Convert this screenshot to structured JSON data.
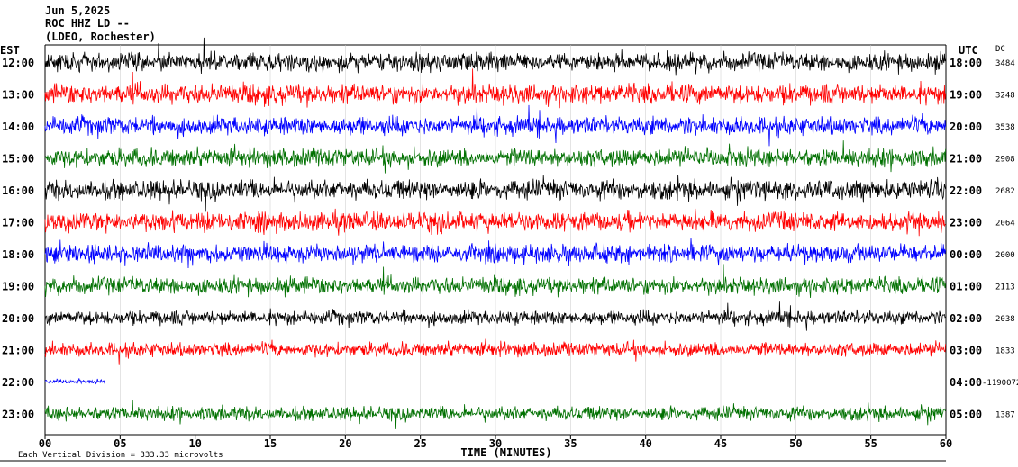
{
  "header": {
    "date": "Jun 5,2025",
    "station": "ROC HHZ LD --",
    "network": "(LDEO, Rochester)"
  },
  "chart_data": {
    "type": "helicorder",
    "title": "",
    "xlabel": "TIME (MINUTES)",
    "xlim": [
      0,
      60
    ],
    "x_ticks": [
      "00",
      "05",
      "10",
      "15",
      "20",
      "25",
      "30",
      "35",
      "40",
      "45",
      "50",
      "55",
      "60"
    ],
    "left_axis_label": "EST",
    "right_axis_label": "UTC",
    "dc_label": "DC",
    "rows": [
      {
        "est": "12:00",
        "utc": "18:00",
        "dc": "3484",
        "color": "#000000",
        "amp": 13
      },
      {
        "est": "13:00",
        "utc": "19:00",
        "dc": "3248",
        "color": "#ff0000",
        "amp": 14
      },
      {
        "est": "14:00",
        "utc": "20:00",
        "dc": "3538",
        "color": "#0000ff",
        "amp": 13
      },
      {
        "est": "15:00",
        "utc": "21:00",
        "dc": "2908",
        "color": "#007000",
        "amp": 13
      },
      {
        "est": "16:00",
        "utc": "22:00",
        "dc": "2682",
        "color": "#000000",
        "amp": 14
      },
      {
        "est": "17:00",
        "utc": "23:00",
        "dc": "2064",
        "color": "#ff0000",
        "amp": 14
      },
      {
        "est": "18:00",
        "utc": "00:00",
        "dc": "2000",
        "color": "#0000ff",
        "amp": 13
      },
      {
        "est": "19:00",
        "utc": "01:00",
        "dc": "2113",
        "color": "#007000",
        "amp": 12
      },
      {
        "est": "20:00",
        "utc": "02:00",
        "dc": "2038",
        "color": "#000000",
        "amp": 10
      },
      {
        "est": "21:00",
        "utc": "03:00",
        "dc": "1833",
        "color": "#ff0000",
        "amp": 10
      },
      {
        "est": "22:00",
        "utc": "04:00",
        "dc": "-1190072",
        "color": "#0000ff",
        "amp": 3,
        "end_minute": 4
      },
      {
        "est": "23:00",
        "utc": "05:00",
        "dc": "1387",
        "color": "#007000",
        "amp": 10
      }
    ],
    "grid": true
  },
  "footer": {
    "scale_note": "Each Vertical Division = 333.33 microvolts"
  }
}
